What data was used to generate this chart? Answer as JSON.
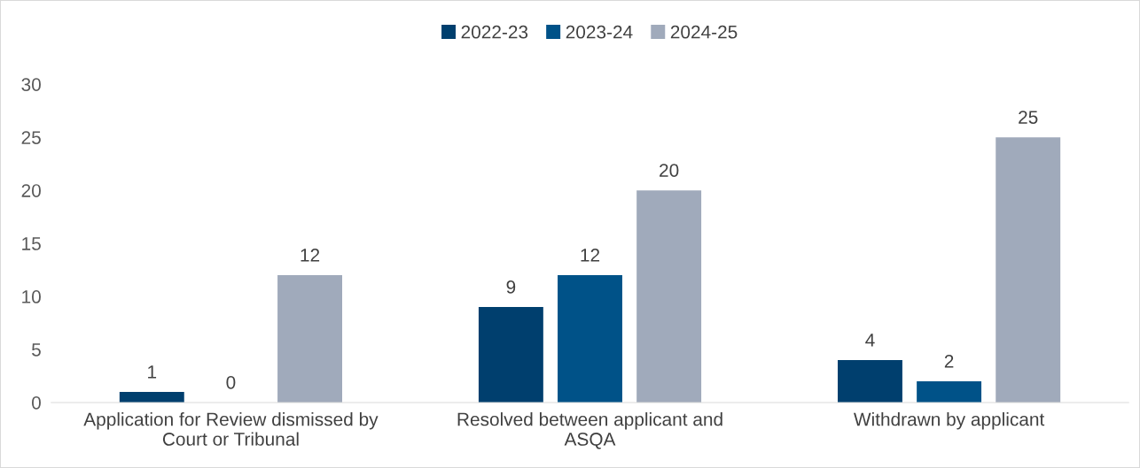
{
  "chart_data": {
    "type": "bar",
    "categories": [
      "Application for Review dismissed by\nCourt or Tribunal",
      "Resolved between applicant and\nASQA",
      "Withdrawn by applicant"
    ],
    "series": [
      {
        "name": "2022-23",
        "color": "#003f6e",
        "values": [
          1,
          9,
          4
        ]
      },
      {
        "name": "2023-24",
        "color": "#005288",
        "values": [
          0,
          12,
          2
        ]
      },
      {
        "name": "2024-25",
        "color": "#a0aabb",
        "values": [
          12,
          20,
          25
        ]
      }
    ],
    "ylim": [
      0,
      30
    ],
    "yticks": [
      0,
      5,
      10,
      15,
      20,
      25,
      30
    ],
    "grid": false,
    "legend": "top",
    "data_labels": true
  }
}
